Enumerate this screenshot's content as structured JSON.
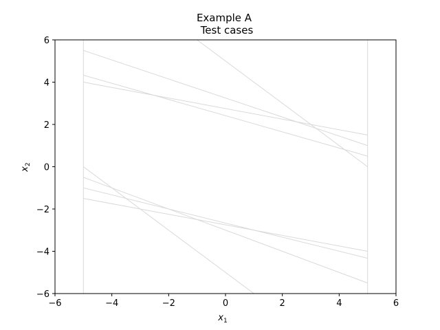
{
  "chart_data": {
    "type": "line",
    "title": "Example A",
    "subtitle": "Test cases",
    "xlabel": "x",
    "xlabel_sub": "1",
    "ylabel": "x",
    "ylabel_sub": "2",
    "xlim": [
      -6,
      6
    ],
    "ylim": [
      -6,
      6
    ],
    "xticks": [
      -6,
      -4,
      -2,
      0,
      2,
      4,
      6
    ],
    "yticks": [
      -6,
      -4,
      -2,
      0,
      2,
      4,
      6
    ],
    "xtick_labels": [
      "−6",
      "−4",
      "−2",
      "0",
      "2",
      "4",
      "6"
    ],
    "ytick_labels": [
      "−6",
      "−4",
      "−2",
      "0",
      "2",
      "4",
      "6"
    ],
    "grid": false,
    "line_color": "#d9d9d9",
    "series": [
      {
        "x": [
          -5,
          -5
        ],
        "y": [
          -6,
          6
        ]
      },
      {
        "x": [
          5,
          5
        ],
        "y": [
          -6,
          6
        ]
      },
      {
        "x": [
          -5,
          5
        ],
        "y": [
          5.5,
          1.0
        ]
      },
      {
        "x": [
          -5,
          5
        ],
        "y": [
          4.33,
          0.5
        ]
      },
      {
        "x": [
          -5,
          5
        ],
        "y": [
          4.0,
          1.5
        ]
      },
      {
        "x": [
          -1,
          5
        ],
        "y": [
          6.0,
          0.0
        ]
      },
      {
        "x": [
          -5,
          1
        ],
        "y": [
          0.0,
          -6.0
        ]
      },
      {
        "x": [
          -5,
          5
        ],
        "y": [
          -0.5,
          -5.5
        ]
      },
      {
        "x": [
          -5,
          5
        ],
        "y": [
          -1.0,
          -4.33
        ]
      },
      {
        "x": [
          -5,
          5
        ],
        "y": [
          -1.5,
          -4.0
        ]
      }
    ]
  }
}
